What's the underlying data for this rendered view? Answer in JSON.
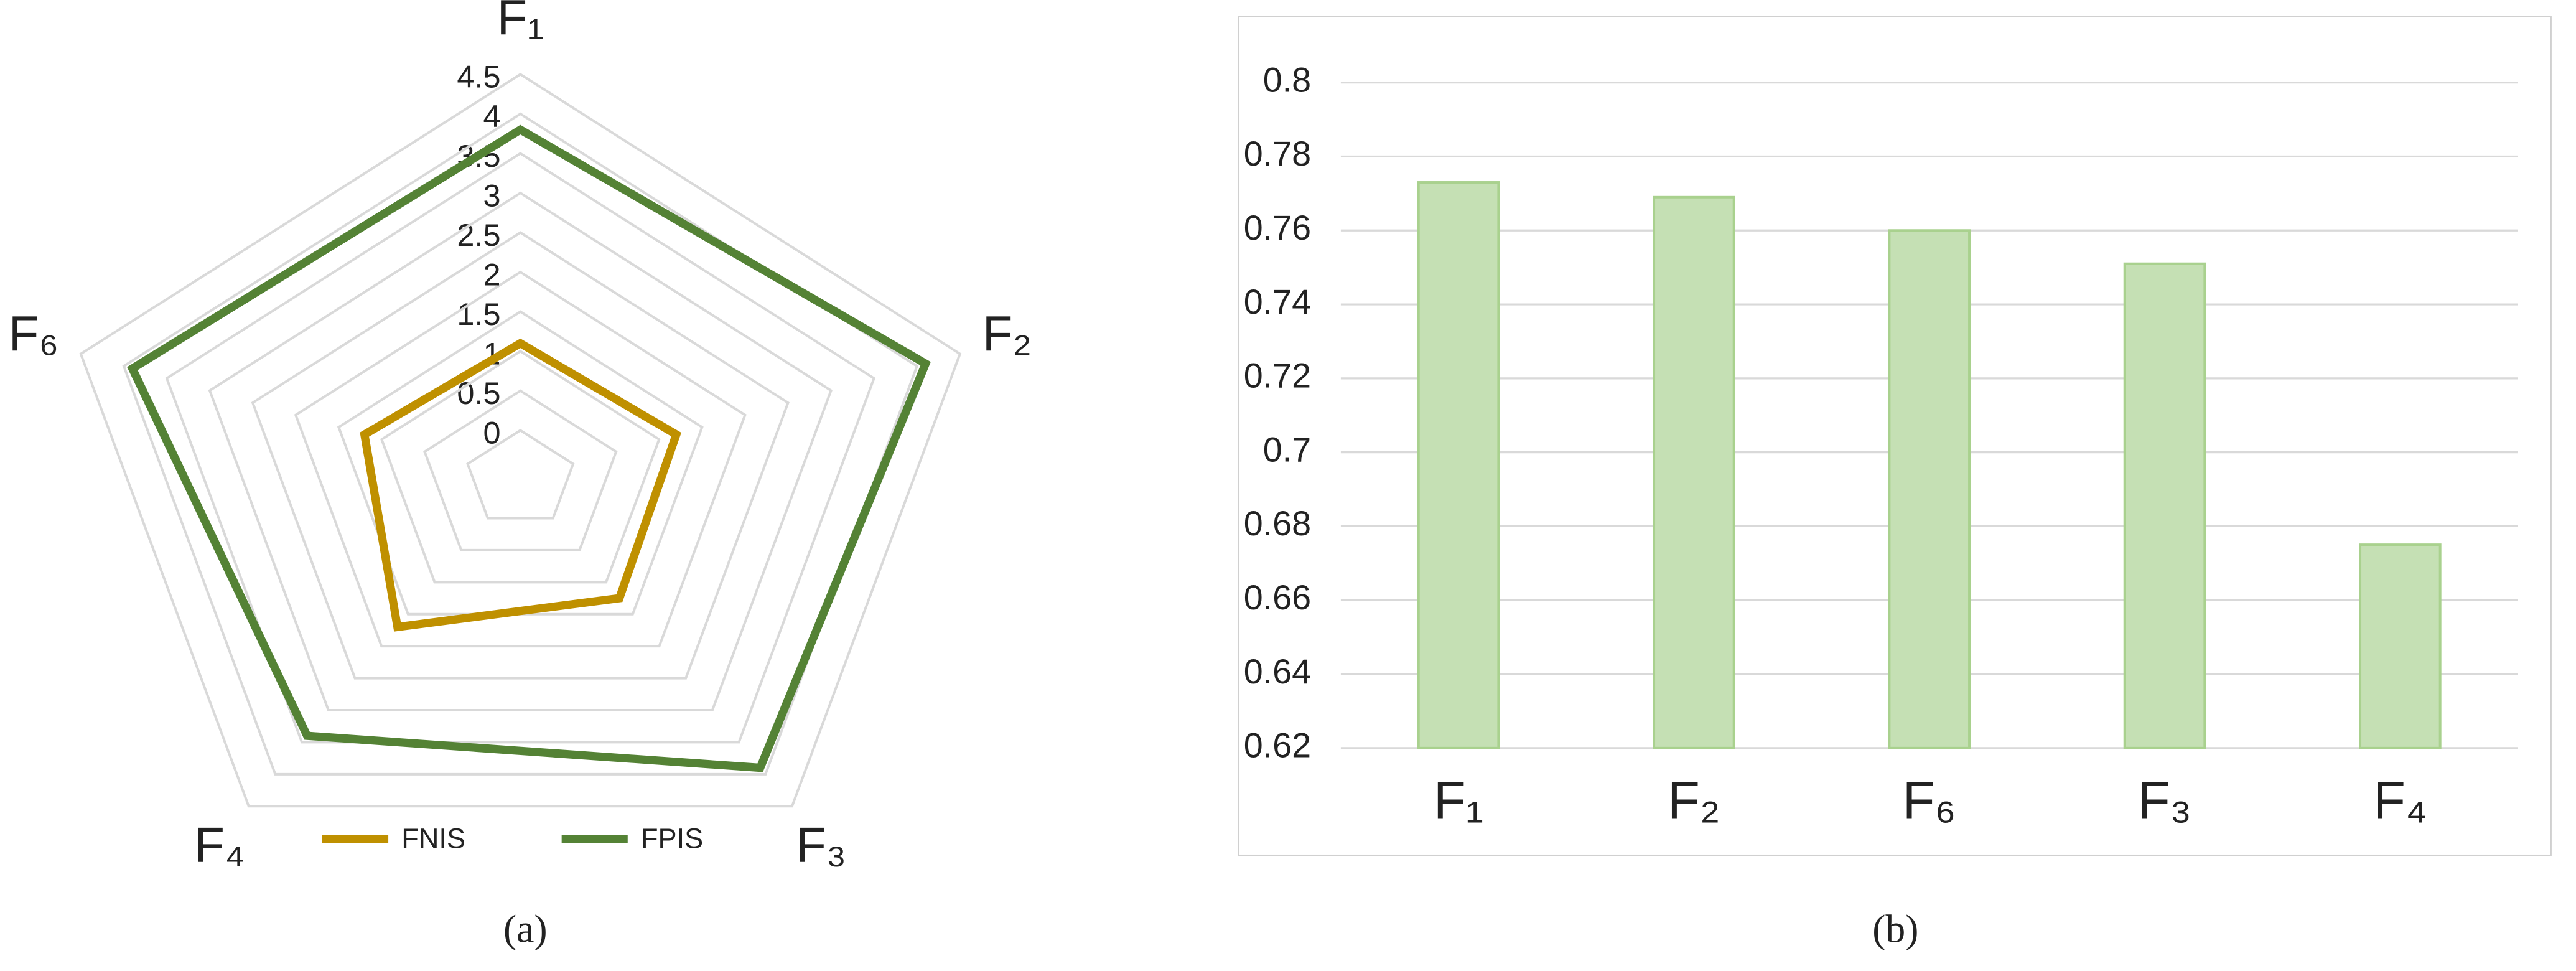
{
  "chart_data": [
    {
      "type": "radar",
      "caption": "(a)",
      "categories": [
        "F₁",
        "F₂",
        "F₃",
        "F₄",
        "F₆"
      ],
      "series": [
        {
          "name": "FNIS",
          "color": "#bf9000",
          "values": [
            1.1,
            1.2,
            1.25,
            1.7,
            1.2
          ]
        },
        {
          "name": "FPIS",
          "color": "#548235",
          "values": [
            3.8,
            4.1,
            3.9,
            3.4,
            3.9
          ]
        }
      ],
      "rlim": [
        0,
        4.5
      ],
      "rticks": [
        0,
        0.5,
        1,
        1.5,
        2,
        2.5,
        3,
        3.5,
        4,
        4.5
      ],
      "grid": true,
      "legend": "bottom"
    },
    {
      "type": "bar",
      "caption": "(b)",
      "categories": [
        "F₁",
        "F₂",
        "F₆",
        "F₃",
        "F₄"
      ],
      "values": [
        0.773,
        0.769,
        0.76,
        0.751,
        0.675
      ],
      "color": "#c5e0b4",
      "ylim": [
        0.62,
        0.8
      ],
      "yticks": [
        0.62,
        0.64,
        0.66,
        0.68,
        0.7,
        0.72,
        0.74,
        0.76,
        0.78,
        0.8
      ],
      "grid": true
    }
  ]
}
